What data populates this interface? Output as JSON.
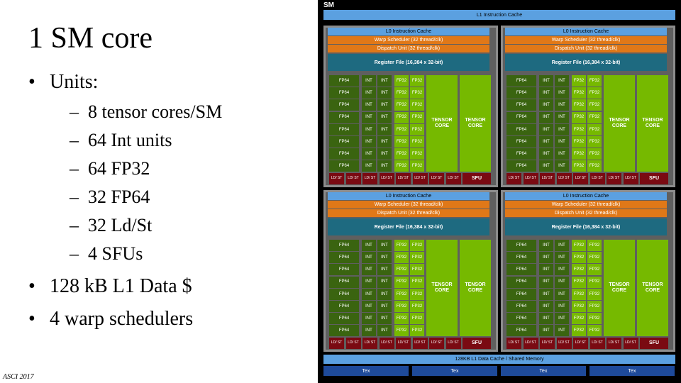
{
  "slide": {
    "title": "1 SM core",
    "bullet1": "Units:",
    "sub": [
      "8 tensor cores/SM",
      "64 Int units",
      "64 FP32",
      "32 FP64",
      "32 Ld/St",
      "4 SFUs"
    ],
    "bullet2": "128 kB L1 Data $",
    "bullet3": "4 warp schedulers",
    "footer": "ASCI 2017",
    "bullet_char": "•",
    "dash_char": "–"
  },
  "diagram": {
    "sm_label": "SM",
    "l1_instruction": "L1 Instruction Cache",
    "l0_instruction": "L0 Instruction Cache",
    "warp_scheduler": "Warp Scheduler (32 thread/clk)",
    "dispatch_unit": "Dispatch Unit (32 thread/clk)",
    "register_file": "Register File (16,384 x 32-bit)",
    "fp64": "FP64",
    "int": "INT",
    "fp32": "FP32",
    "tensor_core": "TENSOR CORE",
    "ldst": "LD/ ST",
    "sfu": "SFU",
    "l1_data": "128KB L1 Data Cache / Shared Memory",
    "tex": "Tex",
    "colors": {
      "accent_green": "#76b900",
      "cache_blue": "#5ba0e0",
      "scheduler_orange": "#e07818",
      "register_teal": "#1e6a80",
      "ldst_red": "#7a0a12",
      "tex_blue": "#1e4a9a"
    }
  }
}
